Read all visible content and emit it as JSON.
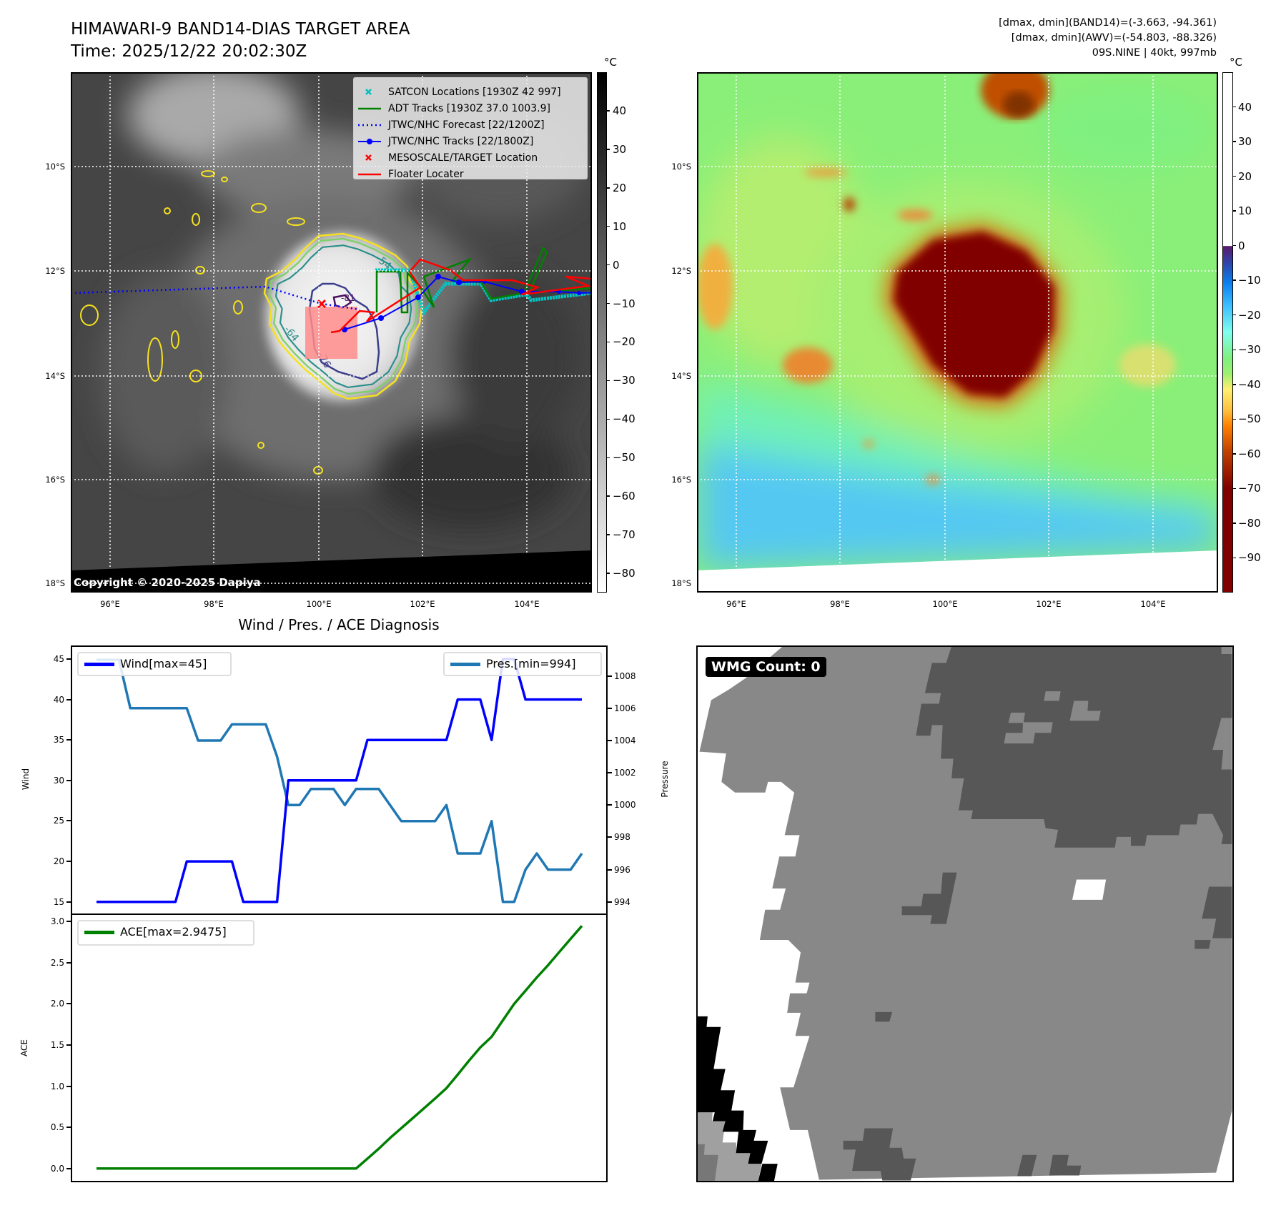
{
  "header": {
    "title": "HIMAWARI-9 BAND14-DIAS TARGET AREA",
    "time": "Time: 2025/12/22 20:02:30Z",
    "stats": [
      "[dmax, dmin](BAND14)=(-3.663, -94.361)",
      "[dmax, dmin](AWV)=(-54.803, -88.326)",
      "09S.NINE | 40kt, 997mb"
    ]
  },
  "map_left": {
    "legend": [
      {
        "label": "SATCON Locations [1930Z 42 997]",
        "color": "#00c0c0",
        "marker": "x"
      },
      {
        "label": "ADT Tracks [1930Z 37.0 1003.9]",
        "color": "#008000",
        "marker": "line"
      },
      {
        "label": "JTWC/NHC Forecast [22/1200Z]",
        "color": "#0000ff",
        "marker": "dotted"
      },
      {
        "label": "JTWC/NHC Tracks [22/1800Z]",
        "color": "#0000ff",
        "marker": "line-dot"
      },
      {
        "label": "MESOSCALE/TARGET Location",
        "color": "#ff0000",
        "marker": "x"
      },
      {
        "label": "Floater Locater",
        "color": "#ff0000",
        "marker": "line"
      }
    ],
    "contour_labels": [
      "-54",
      "-64",
      "-76",
      "-81"
    ],
    "copyright": "Copyright © 2020-2025 Dapiya"
  },
  "colorbar_left": {
    "unit": "°C",
    "ticks": [
      "40",
      "30",
      "20",
      "10",
      "0",
      "−10",
      "−20",
      "−30",
      "−40",
      "−50",
      "−60",
      "−70",
      "−80"
    ],
    "values": [
      40,
      30,
      20,
      10,
      0,
      -10,
      -20,
      -30,
      -40,
      -50,
      -60,
      -70,
      -80
    ],
    "range": [
      50,
      -85
    ]
  },
  "colorbar_right": {
    "unit": "°C",
    "ticks": [
      "40",
      "30",
      "20",
      "10",
      "0",
      "−10",
      "−20",
      "−30",
      "−40",
      "−50",
      "−60",
      "−70",
      "−80",
      "−90"
    ],
    "values": [
      40,
      30,
      20,
      10,
      0,
      -10,
      -20,
      -30,
      -40,
      -50,
      -60,
      -70,
      -80,
      -90
    ],
    "range": [
      50,
      -100
    ]
  },
  "axes": {
    "lat_labels": [
      "10°S",
      "12°S",
      "14°S",
      "16°S",
      "18°S"
    ],
    "lon_labels": [
      "96°E",
      "98°E",
      "100°E",
      "102°E",
      "104°E"
    ]
  },
  "wmg": {
    "label": "WMG Count: 0"
  },
  "diagnosis": {
    "title": "Wind / Pres. / ACE Diagnosis"
  },
  "chart_data": [
    {
      "type": "line",
      "title": "Wind / Pres. / ACE Diagnosis",
      "ylabel": "Wind",
      "y2label": "Pressure",
      "x": [
        0,
        1,
        2,
        3,
        4,
        5,
        6,
        7,
        8,
        9,
        10,
        11,
        12,
        13,
        14,
        15,
        16,
        17,
        18,
        19,
        20,
        21,
        22,
        23,
        24,
        25,
        26,
        27,
        28,
        29,
        30,
        31,
        32,
        33,
        34,
        35,
        36,
        37,
        38,
        39,
        40,
        41,
        42,
        43
      ],
      "xlim": [
        -2.15,
        45.15
      ],
      "ylim": [
        13.56,
        46.5
      ],
      "y2lim": [
        993.28,
        1009.8
      ],
      "yticks": [
        15,
        20,
        25,
        30,
        35,
        40,
        45
      ],
      "y2ticks": [
        994,
        996,
        998,
        1000,
        1002,
        1004,
        1006,
        1008
      ],
      "series": [
        {
          "name": "Wind[max=45]",
          "axis": "left",
          "color": "#0000ff",
          "values": [
            15,
            15,
            15,
            15,
            15,
            15,
            15,
            15,
            20,
            20,
            20,
            20,
            20,
            15,
            15,
            15,
            15,
            30,
            30,
            30,
            30,
            30,
            30,
            30,
            35,
            35,
            35,
            35,
            35,
            35,
            35,
            35,
            40,
            40,
            40,
            35,
            45,
            45,
            40,
            40,
            40,
            40,
            40,
            40
          ]
        },
        {
          "name": "Pres.[min=994]",
          "axis": "right",
          "color": "#1f77b4",
          "values": [
            1009,
            1009,
            1009,
            1006,
            1006,
            1006,
            1006,
            1006,
            1006,
            1004,
            1004,
            1004,
            1005,
            1005,
            1005,
            1005,
            1003,
            1000,
            1000,
            1001,
            1001,
            1001,
            1000,
            1001,
            1001,
            1001,
            1000,
            999,
            999,
            999,
            999,
            1000,
            997,
            997,
            997,
            999,
            994,
            994,
            996,
            997,
            996,
            996,
            996,
            997
          ]
        }
      ]
    },
    {
      "type": "line",
      "ylabel": "ACE",
      "x": [
        0,
        1,
        2,
        3,
        4,
        5,
        6,
        7,
        8,
        9,
        10,
        11,
        12,
        13,
        14,
        15,
        16,
        17,
        18,
        19,
        20,
        21,
        22,
        23,
        24,
        25,
        26,
        27,
        28,
        29,
        30,
        31,
        32,
        33,
        34,
        35,
        36,
        37,
        38,
        39,
        40,
        41,
        42,
        43
      ],
      "xlim": [
        -2.15,
        45.15
      ],
      "ylim": [
        -0.15,
        3.08
      ],
      "yticks": [
        "0.0",
        "0.5",
        "1.0",
        "1.5",
        "2.0",
        "2.5",
        "3.0"
      ],
      "series": [
        {
          "name": "ACE[max=2.9475]",
          "color": "#008000",
          "values": [
            0,
            0,
            0,
            0,
            0,
            0,
            0,
            0,
            0,
            0,
            0,
            0,
            0,
            0,
            0,
            0,
            0,
            0,
            0,
            0,
            0,
            0,
            0,
            0,
            0.12,
            0.24,
            0.37,
            0.49,
            0.61,
            0.73,
            0.85,
            0.975,
            1.14,
            1.31,
            1.47,
            1.6,
            1.8,
            2.0,
            2.16,
            2.32,
            2.47,
            2.63,
            2.79,
            2.9475
          ]
        }
      ]
    }
  ]
}
